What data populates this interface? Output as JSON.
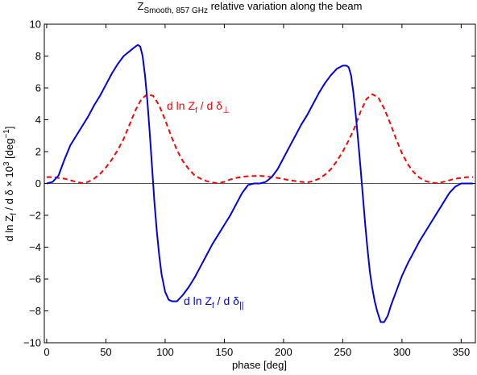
{
  "chart_data": {
    "type": "line",
    "title_main": "Z",
    "title_sub": "Smooth, 857 GHz",
    "title_rest": " relative variation along the beam",
    "xlabel": "phase [deg]",
    "ylabel_parts": {
      "a": "d ln Z",
      "a_sub": "f",
      "b": " / d δ × 10",
      "b_sup": "3",
      "c": " [deg",
      "c_sup": "−1",
      "d": "]"
    },
    "xlim": [
      -2,
      362
    ],
    "ylim": [
      -10,
      10
    ],
    "xticks": [
      0,
      50,
      100,
      150,
      200,
      250,
      300,
      350
    ],
    "yticks": [
      -10,
      -8,
      -6,
      -4,
      -2,
      0,
      2,
      4,
      6,
      8,
      10
    ],
    "grid": false,
    "zero_line": true,
    "series": [
      {
        "key": "parallel",
        "color": "#0000e6",
        "style": "solid",
        "label_parts": {
          "a": "d ln Z",
          "a_sub": "f",
          "b": " / d δ",
          "b_sub": "||"
        },
        "x": [
          0,
          5,
          10,
          15,
          20,
          25,
          30,
          35,
          40,
          45,
          50,
          55,
          60,
          65,
          70,
          75,
          77,
          79,
          81,
          83,
          85,
          87,
          89,
          91,
          93,
          95,
          97,
          100,
          103,
          106,
          110,
          115,
          120,
          125,
          130,
          135,
          140,
          145,
          150,
          155,
          160,
          165,
          170,
          175,
          180,
          185,
          190,
          195,
          200,
          205,
          210,
          215,
          220,
          225,
          230,
          235,
          240,
          245,
          250,
          253,
          255,
          257,
          259,
          261,
          263,
          265,
          267,
          269,
          271,
          273,
          275,
          277,
          279,
          282,
          285,
          288,
          291,
          295,
          300,
          305,
          310,
          315,
          320,
          325,
          330,
          335,
          340,
          345,
          350,
          355,
          360
        ],
        "y": [
          0.0,
          0.1,
          0.5,
          1.5,
          2.4,
          3.0,
          3.6,
          4.2,
          4.9,
          5.5,
          6.2,
          6.9,
          7.5,
          8.0,
          8.3,
          8.6,
          8.7,
          8.6,
          8.0,
          6.8,
          5.2,
          3.2,
          1.0,
          -1.2,
          -3.0,
          -4.5,
          -5.7,
          -6.8,
          -7.3,
          -7.4,
          -7.4,
          -7.0,
          -6.5,
          -5.9,
          -5.2,
          -4.5,
          -3.8,
          -3.2,
          -2.6,
          -2.0,
          -1.3,
          -0.6,
          -0.1,
          0.0,
          0.0,
          0.1,
          0.4,
          0.9,
          1.6,
          2.3,
          3.0,
          3.7,
          4.3,
          5.0,
          5.7,
          6.3,
          6.8,
          7.2,
          7.4,
          7.4,
          7.3,
          6.8,
          5.7,
          4.3,
          2.7,
          1.0,
          -0.8,
          -2.6,
          -4.2,
          -5.6,
          -6.6,
          -7.4,
          -8.0,
          -8.7,
          -8.7,
          -8.3,
          -7.6,
          -6.8,
          -5.8,
          -5.0,
          -4.3,
          -3.6,
          -3.0,
          -2.4,
          -1.8,
          -1.2,
          -0.6,
          -0.2,
          0.0,
          0.0,
          0.0
        ]
      },
      {
        "key": "perpendicular",
        "color": "#ff0000",
        "style": "dashed",
        "label_parts": {
          "a": "d ln Z",
          "a_sub": "f",
          "b": " / d δ",
          "b_sub": "⊥"
        },
        "x": [
          0,
          5,
          10,
          15,
          20,
          25,
          30,
          35,
          40,
          45,
          50,
          55,
          60,
          65,
          70,
          75,
          80,
          85,
          90,
          95,
          100,
          105,
          110,
          115,
          120,
          125,
          130,
          135,
          140,
          145,
          150,
          155,
          160,
          165,
          170,
          175,
          180,
          185,
          190,
          195,
          200,
          205,
          210,
          215,
          220,
          225,
          230,
          235,
          240,
          245,
          250,
          255,
          260,
          265,
          270,
          275,
          280,
          285,
          290,
          295,
          300,
          305,
          310,
          315,
          320,
          325,
          330,
          335,
          340,
          345,
          350,
          355,
          360
        ],
        "y": [
          0.4,
          0.4,
          0.35,
          0.3,
          0.2,
          0.1,
          0.02,
          0.1,
          0.3,
          0.6,
          1.0,
          1.5,
          2.1,
          2.8,
          3.7,
          4.6,
          5.3,
          5.6,
          5.5,
          4.9,
          4.0,
          3.0,
          2.1,
          1.4,
          0.9,
          0.5,
          0.3,
          0.15,
          0.06,
          0.02,
          0.1,
          0.25,
          0.35,
          0.42,
          0.45,
          0.47,
          0.48,
          0.45,
          0.4,
          0.35,
          0.28,
          0.2,
          0.15,
          0.1,
          0.06,
          0.15,
          0.3,
          0.55,
          0.9,
          1.4,
          2.0,
          2.7,
          3.5,
          4.5,
          5.3,
          5.6,
          5.4,
          4.7,
          3.8,
          2.8,
          1.9,
          1.2,
          0.7,
          0.35,
          0.15,
          0.05,
          0.02,
          0.1,
          0.2,
          0.3,
          0.35,
          0.4,
          0.4
        ]
      }
    ]
  }
}
